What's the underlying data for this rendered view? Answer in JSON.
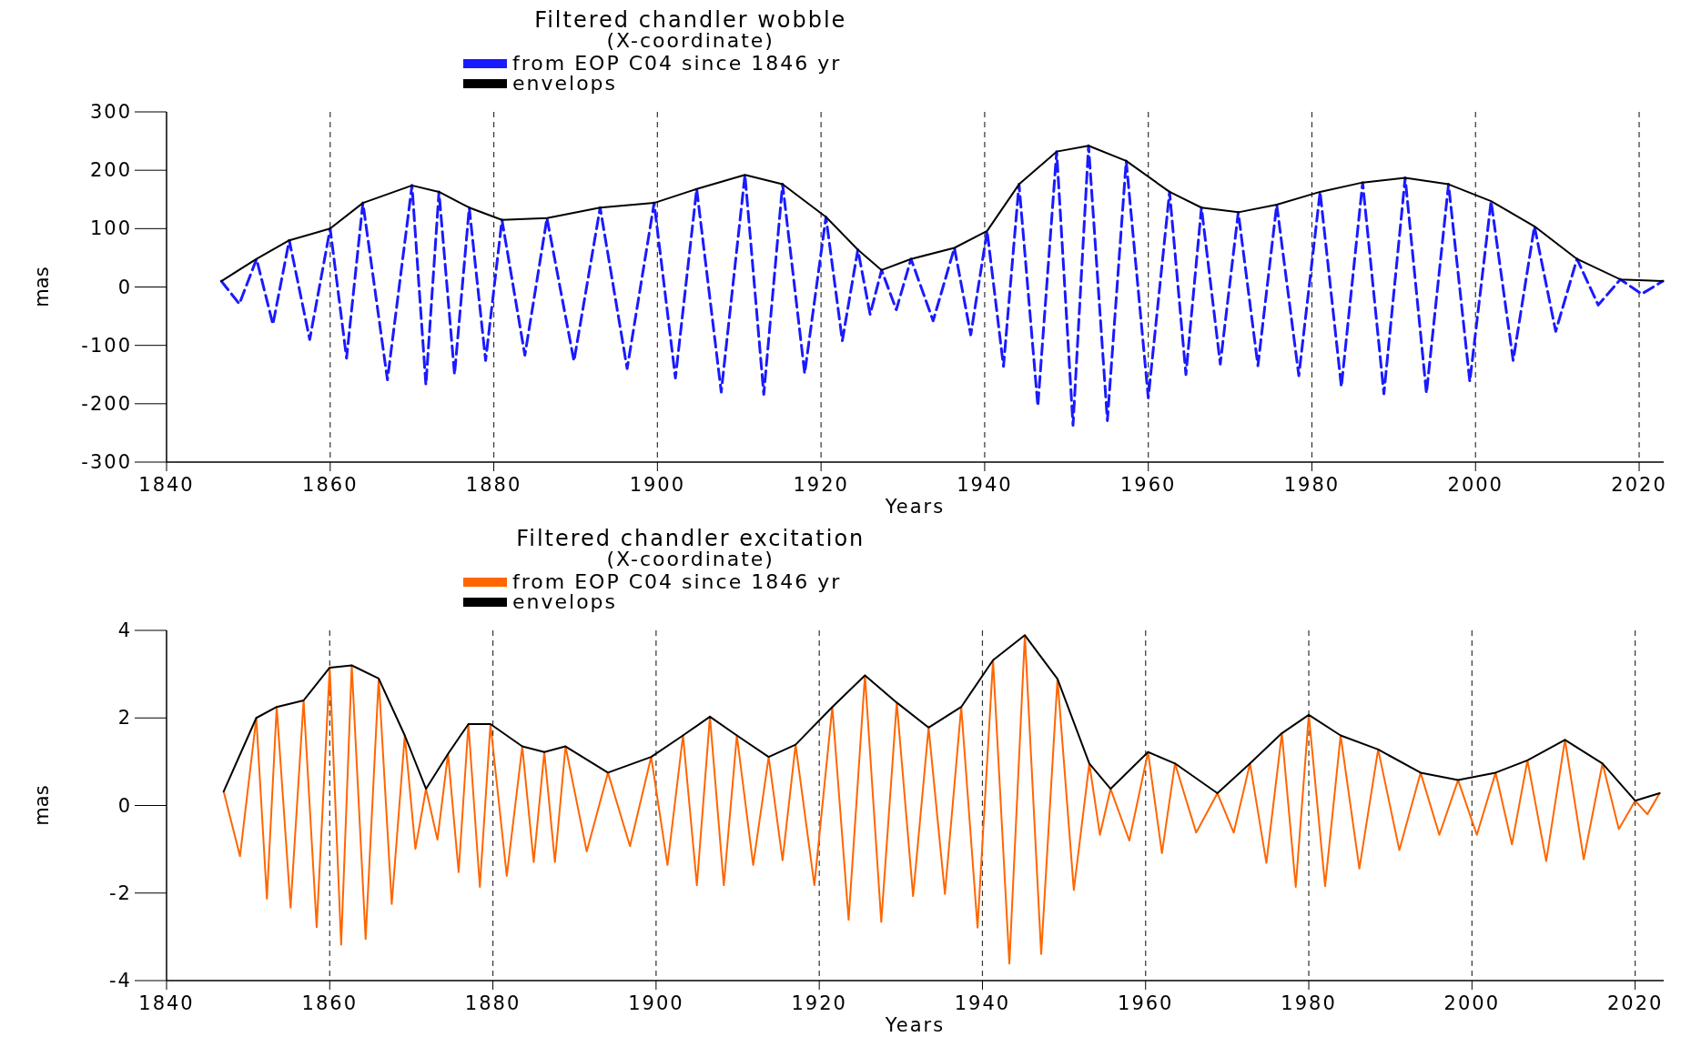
{
  "chart_data": [
    {
      "type": "line",
      "title": "Filtered chandler wobble",
      "subtitle": "(X-coordinate)",
      "xlabel": "Years",
      "ylabel": "mas",
      "xlim": [
        1840,
        2023
      ],
      "xticks": [
        1840,
        1860,
        1880,
        1900,
        1920,
        1940,
        1960,
        1980,
        2000,
        2020
      ],
      "ylim": [
        -300,
        300
      ],
      "yticks": [
        -300,
        -200,
        -100,
        0,
        100,
        200,
        300
      ],
      "grid": "x",
      "legend": "top",
      "series": [
        {
          "name": "from EOP C04 since 1846 yr",
          "color": "#1a1aff",
          "line_style": "dashed",
          "x": [
            1846.7,
            1848.9,
            1851,
            1853,
            1855,
            1857.5,
            1860,
            1862,
            1864,
            1867,
            1870,
            1871.7,
            1873.3,
            1875.2,
            1877,
            1879,
            1881,
            1883.8,
            1886.5,
            1889.8,
            1893,
            1896.3,
            1899.6,
            1902.2,
            1904.8,
            1907.8,
            1910.7,
            1913,
            1915.3,
            1918,
            1920.6,
            1922.6,
            1924.5,
            1926,
            1927.4,
            1929.2,
            1931,
            1933.7,
            1936.3,
            1938.3,
            1940.3,
            1942.3,
            1944.2,
            1946.5,
            1948.8,
            1950.8,
            1952.7,
            1955,
            1957.3,
            1960,
            1962.6,
            1964.6,
            1966.5,
            1968.8,
            1971,
            1973.4,
            1975.7,
            1978.4,
            1981,
            1983.6,
            1986.2,
            1988.8,
            1991.4,
            1994,
            1996.7,
            1999.3,
            2001.9,
            2004.6,
            2007.2,
            2009.8,
            2012.4,
            2015,
            2017.7,
            2020.3,
            2022.9
          ],
          "values": [
            10,
            -29,
            48,
            -64,
            80,
            -90,
            100,
            -122,
            144,
            -159,
            174,
            -168,
            163,
            -150,
            136,
            -126,
            115,
            -117,
            118,
            -127,
            136,
            -140,
            144,
            -156,
            168,
            -180,
            192,
            -184,
            176,
            -148,
            120,
            -92,
            64,
            -47,
            29,
            -39,
            48,
            -58,
            67,
            -82,
            96,
            -136,
            176,
            -204,
            232,
            -237,
            242,
            -229,
            216,
            -190,
            163,
            -150,
            136,
            -132,
            128,
            -135,
            141,
            -152,
            163,
            -171,
            179,
            -183,
            187,
            -182,
            176,
            -162,
            147,
            -126,
            104,
            -76,
            48,
            -31,
            13,
            -12,
            10
          ]
        },
        {
          "name": "envelops",
          "color": "#000000",
          "line_style": "solid",
          "x": [
            1846.7,
            1851,
            1855,
            1860,
            1864,
            1870,
            1873.3,
            1877,
            1881,
            1886.5,
            1893,
            1899.6,
            1904.8,
            1910.7,
            1915.3,
            1920.6,
            1924.5,
            1927.4,
            1931,
            1936.3,
            1940.3,
            1944.2,
            1948.8,
            1952.7,
            1957.3,
            1962.6,
            1966.5,
            1971,
            1975.7,
            1981,
            1986.2,
            1991.4,
            1996.7,
            2001.9,
            2007.2,
            2012.4,
            2017.7,
            2022.9
          ],
          "values": [
            10,
            48,
            80,
            100,
            144,
            174,
            163,
            136,
            115,
            118,
            136,
            144,
            168,
            192,
            176,
            120,
            64,
            29,
            48,
            67,
            96,
            176,
            232,
            242,
            216,
            163,
            136,
            128,
            141,
            163,
            179,
            187,
            176,
            147,
            104,
            48,
            13,
            10
          ]
        }
      ]
    },
    {
      "type": "line",
      "title": "Filtered chandler excitation",
      "subtitle": "(X-coordinate)",
      "xlabel": "Years",
      "ylabel": "mas",
      "xlim": [
        1840,
        2023.5
      ],
      "xticks": [
        1840,
        1860,
        1880,
        1900,
        1920,
        1940,
        1960,
        1980,
        2000,
        2020
      ],
      "ylim": [
        -4,
        4
      ],
      "yticks": [
        -4,
        -2,
        0,
        2,
        4
      ],
      "grid": "x",
      "legend": "top",
      "series": [
        {
          "name": "from EOP C04 since 1846 yr",
          "color": "#ff6600",
          "line_style": "solid",
          "x": [
            1847,
            1849,
            1851,
            1852.3,
            1853.5,
            1855.2,
            1856.8,
            1858.4,
            1860,
            1861.4,
            1862.7,
            1864.4,
            1866,
            1867.6,
            1869.2,
            1870.5,
            1871.8,
            1873.2,
            1874.5,
            1875.8,
            1877,
            1878.4,
            1879.7,
            1881.7,
            1883.6,
            1885,
            1886.3,
            1887.6,
            1888.9,
            1891.5,
            1894.1,
            1896.8,
            1899.4,
            1901.4,
            1903.3,
            1905,
            1906.6,
            1908.3,
            1909.9,
            1911.9,
            1913.8,
            1915.5,
            1917.1,
            1919.4,
            1921.6,
            1923.6,
            1925.6,
            1927.6,
            1929.5,
            1931.5,
            1933.4,
            1935.4,
            1937.4,
            1939.4,
            1941.3,
            1943.3,
            1945.2,
            1947.2,
            1949.2,
            1951.2,
            1953.1,
            1954.4,
            1955.7,
            1958,
            1960.3,
            1962,
            1963.6,
            1966.2,
            1968.8,
            1970.8,
            1972.8,
            1974.8,
            1976.7,
            1978.4,
            1980,
            1982,
            1983.9,
            1986.2,
            1988.5,
            1991.1,
            1993.7,
            1996,
            1998.3,
            2000.6,
            2002.9,
            2004.9,
            2006.8,
            2009.1,
            2011.4,
            2013.7,
            2016,
            2018,
            2020,
            2021.5,
            2023
          ],
          "values": [
            0.32,
            -1.16,
            2.0,
            -2.13,
            2.25,
            -2.33,
            2.4,
            -2.78,
            3.15,
            -3.18,
            3.2,
            -3.05,
            2.9,
            -2.25,
            1.6,
            -0.99,
            0.38,
            -0.78,
            1.18,
            -1.52,
            1.86,
            -1.86,
            1.86,
            -1.61,
            1.35,
            -1.29,
            1.22,
            -1.29,
            1.35,
            -1.05,
            0.75,
            -0.93,
            1.11,
            -1.36,
            1.6,
            -1.82,
            2.03,
            -1.82,
            1.6,
            -1.36,
            1.11,
            -1.25,
            1.39,
            -1.82,
            2.25,
            -2.61,
            2.97,
            -2.66,
            2.35,
            -2.07,
            1.78,
            -2.02,
            2.25,
            -2.79,
            3.32,
            -3.61,
            3.89,
            -3.39,
            2.89,
            -1.93,
            0.96,
            -0.67,
            0.38,
            -0.8,
            1.22,
            -1.09,
            0.96,
            -0.62,
            0.28,
            -0.62,
            0.96,
            -1.31,
            1.65,
            -1.86,
            2.07,
            -1.84,
            1.6,
            -1.44,
            1.28,
            -1.02,
            0.75,
            -0.67,
            0.58,
            -0.67,
            0.75,
            -0.89,
            1.03,
            -1.27,
            1.5,
            -1.23,
            0.96,
            -0.54,
            0.11,
            -0.2,
            0.28
          ]
        },
        {
          "name": "envelops",
          "color": "#000000",
          "line_style": "solid",
          "x": [
            1847,
            1851,
            1853.5,
            1856.8,
            1860,
            1862.7,
            1866,
            1869.2,
            1871.8,
            1874.5,
            1877,
            1879.7,
            1883.6,
            1886.3,
            1888.9,
            1894.1,
            1899.4,
            1903.3,
            1906.6,
            1909.9,
            1913.8,
            1917.1,
            1921.6,
            1925.6,
            1929.5,
            1933.4,
            1937.4,
            1941.3,
            1945.2,
            1949.2,
            1953.1,
            1955.7,
            1960.3,
            1963.6,
            1968.8,
            1972.8,
            1976.7,
            1980,
            1983.9,
            1988.5,
            1993.7,
            1998.3,
            2002.9,
            2006.8,
            2011.4,
            2016,
            2020,
            2023
          ],
          "values": [
            0.32,
            2.0,
            2.25,
            2.4,
            3.15,
            3.2,
            2.9,
            1.6,
            0.38,
            1.18,
            1.86,
            1.86,
            1.35,
            1.22,
            1.35,
            0.75,
            1.11,
            1.6,
            2.03,
            1.6,
            1.11,
            1.39,
            2.25,
            2.97,
            2.35,
            1.78,
            2.25,
            3.32,
            3.89,
            2.89,
            0.96,
            0.38,
            1.22,
            0.96,
            0.28,
            0.96,
            1.65,
            2.07,
            1.6,
            1.28,
            0.75,
            0.58,
            0.75,
            1.03,
            1.5,
            0.96,
            0.11,
            0.28
          ]
        }
      ]
    }
  ]
}
